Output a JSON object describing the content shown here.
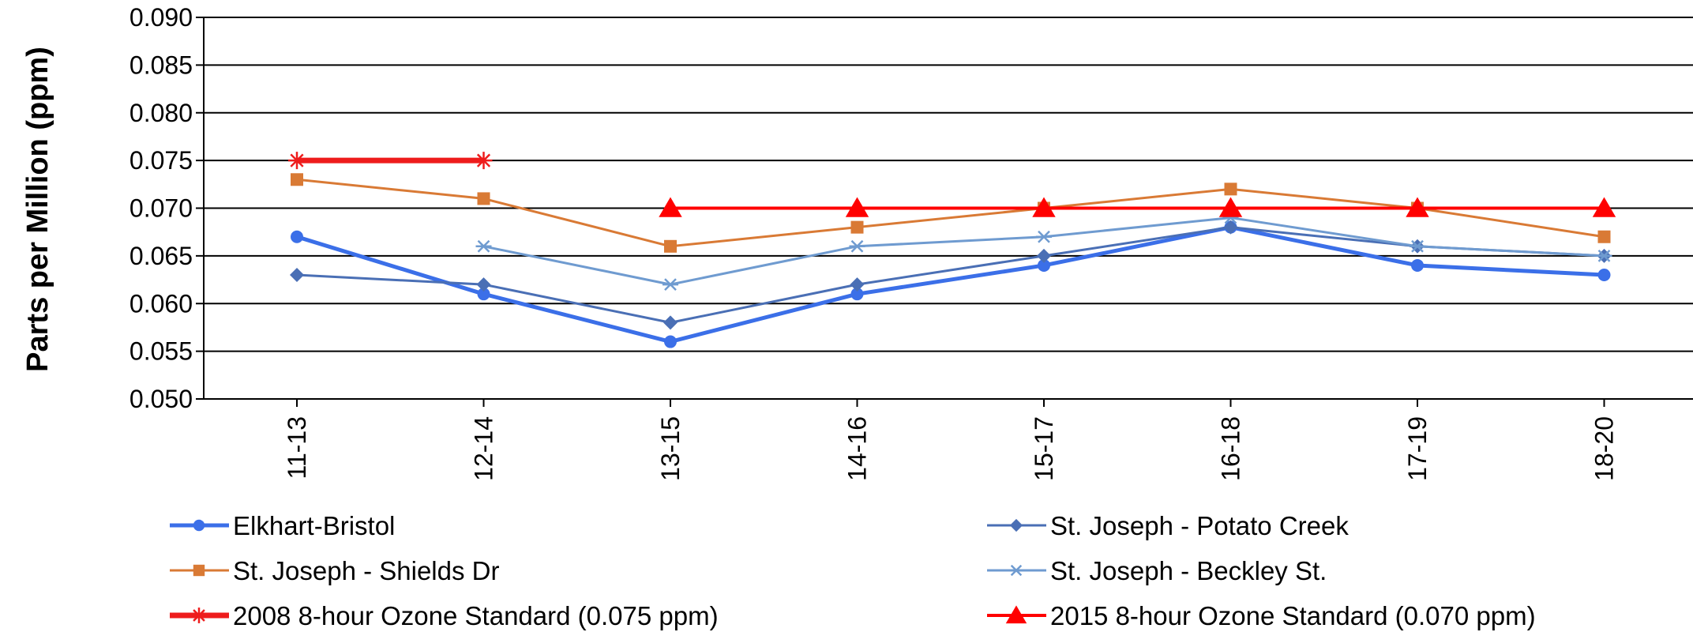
{
  "chart_data": {
    "type": "line",
    "title": "",
    "xlabel": "",
    "ylabel": "Parts per Million (ppm)",
    "ylim": [
      0.05,
      0.09
    ],
    "yticks": [
      "0.090",
      "0.085",
      "0.080",
      "0.075",
      "0.070",
      "0.065",
      "0.060",
      "0.055",
      "0.050"
    ],
    "categories": [
      "11-13",
      "12-14",
      "13-15",
      "14-16",
      "15-17",
      "16-18",
      "17-19",
      "18-20"
    ],
    "grid": "horizontal",
    "legend_position": "bottom",
    "series": [
      {
        "name": "Elkhart-Bristol",
        "color": "#3b6fe8",
        "marker": "circle",
        "values": [
          0.067,
          0.061,
          0.056,
          0.061,
          0.064,
          0.068,
          0.064,
          0.063
        ]
      },
      {
        "name": "St. Joseph - Potato Creek",
        "color": "#4a6fb5",
        "marker": "diamond",
        "values": [
          0.063,
          0.062,
          0.058,
          0.062,
          0.065,
          0.068,
          0.066,
          0.065
        ]
      },
      {
        "name": "St. Joseph - Shields Dr",
        "color": "#d97a35",
        "marker": "square",
        "values": [
          0.073,
          0.071,
          0.066,
          0.068,
          0.07,
          0.072,
          0.07,
          0.067
        ]
      },
      {
        "name": "St. Joseph - Beckley St.",
        "color": "#6f9bd0",
        "marker": "asterisk",
        "values": [
          null,
          0.066,
          0.062,
          0.066,
          0.067,
          0.069,
          0.066,
          0.065
        ]
      },
      {
        "name": "2008 8-hour Ozone Standard (0.075 ppm)",
        "color": "#ee1c1c",
        "marker": "star",
        "values": [
          0.075,
          0.075,
          null,
          null,
          null,
          null,
          null,
          null
        ]
      },
      {
        "name": "2015 8-hour Ozone Standard (0.070 ppm)",
        "color": "#ff0000",
        "marker": "triangle",
        "values": [
          null,
          null,
          0.07,
          0.07,
          0.07,
          0.07,
          0.07,
          0.07
        ]
      }
    ]
  }
}
